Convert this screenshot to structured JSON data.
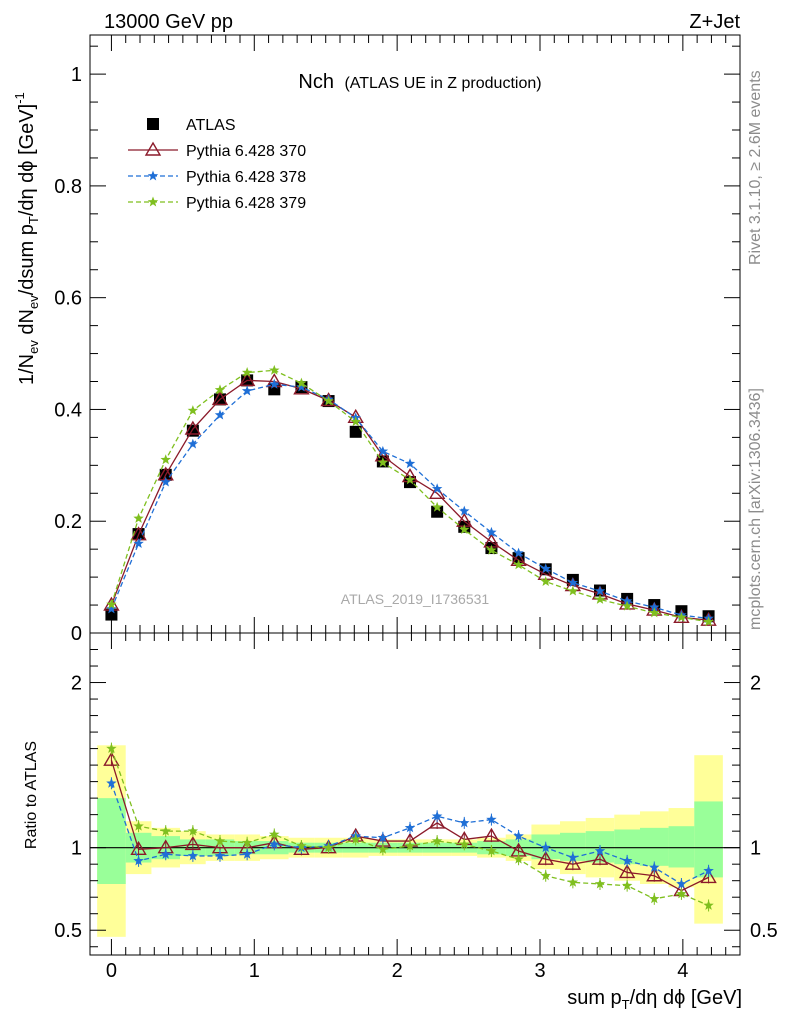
{
  "header": {
    "left": "13000 GeV pp",
    "right": "Z+Jet"
  },
  "title": {
    "main": "Nch",
    "sub": "(ATLAS UE in Z production)"
  },
  "watermark": "ATLAS_2019_I1736531",
  "side_labels": {
    "rivet": "Rivet 3.1.10, ≥ 2.6M events",
    "mcplots": "mcplots.cern.ch [arXiv:1306.3436]"
  },
  "legend": [
    {
      "label": "ATLAS",
      "marker": "square",
      "color": "#000000"
    },
    {
      "label": "Pythia 6.428 370",
      "marker": "triangle",
      "color": "#8b1a2a"
    },
    {
      "label": "Pythia 6.428 378",
      "marker": "star",
      "color": "#1f6fd6"
    },
    {
      "label": "Pythia 6.428 379",
      "marker": "star",
      "color": "#7fbf1f"
    }
  ],
  "colors": {
    "band_yellow": "#ffff99",
    "band_green": "#99ff99"
  },
  "chart_data": [
    {
      "type": "scatter",
      "panel": "main",
      "ylabel": "1/N_ev dN_ev/dsum p_T/dη dϕ [GeV]^-1",
      "xlim": [
        -0.15,
        4.4
      ],
      "ylim": [
        0,
        1.07
      ],
      "yticks": [
        0,
        0.2,
        0.4,
        0.6,
        0.8,
        1
      ],
      "ytick_labels": [
        "0",
        "0.2",
        "0.4",
        "0.6",
        "0.8",
        "1"
      ],
      "x": [
        0,
        0.19,
        0.38,
        0.57,
        0.76,
        0.95,
        1.14,
        1.33,
        1.52,
        1.71,
        1.9,
        2.09,
        2.28,
        2.47,
        2.66,
        2.85,
        3.04,
        3.23,
        3.42,
        3.61,
        3.8,
        3.99,
        4.18
      ],
      "series": [
        {
          "name": "ATLAS",
          "values": [
            0.033,
            0.177,
            0.283,
            0.362,
            0.418,
            0.452,
            0.436,
            0.44,
            0.415,
            0.36,
            0.307,
            0.27,
            0.217,
            0.19,
            0.152,
            0.134,
            0.114,
            0.095,
            0.076,
            0.061,
            0.05,
            0.039,
            0.03
          ]
        },
        {
          "name": "Pythia 6.428 370",
          "values": [
            0.05,
            0.176,
            0.283,
            0.365,
            0.418,
            0.452,
            0.45,
            0.437,
            0.416,
            0.386,
            0.317,
            0.28,
            0.25,
            0.2,
            0.163,
            0.13,
            0.105,
            0.085,
            0.07,
            0.052,
            0.041,
            0.028,
            0.023
          ]
        },
        {
          "name": "Pythia 6.428 378",
          "values": [
            0.043,
            0.16,
            0.27,
            0.338,
            0.39,
            0.433,
            0.445,
            0.44,
            0.418,
            0.385,
            0.325,
            0.303,
            0.258,
            0.218,
            0.18,
            0.143,
            0.115,
            0.09,
            0.075,
            0.057,
            0.046,
            0.032,
            0.026
          ]
        },
        {
          "name": "Pythia 6.428 379",
          "values": [
            0.051,
            0.205,
            0.31,
            0.398,
            0.435,
            0.466,
            0.47,
            0.447,
            0.415,
            0.378,
            0.305,
            0.274,
            0.225,
            0.185,
            0.148,
            0.122,
            0.092,
            0.075,
            0.06,
            0.048,
            0.036,
            0.028,
            0.02
          ]
        }
      ]
    },
    {
      "type": "scatter",
      "panel": "ratio",
      "xlabel": "sum p_T/dη dϕ [GeV]",
      "ylabel": "Ratio to ATLAS",
      "xlim": [
        -0.15,
        4.4
      ],
      "ylim": [
        0.35,
        2.3
      ],
      "xticks": [
        0,
        1,
        2,
        3,
        4
      ],
      "xtick_labels": [
        "0",
        "1",
        "2",
        "3",
        "4"
      ],
      "yticks": [
        0.5,
        1,
        2
      ],
      "ytick_labels": [
        "0.5",
        "1",
        "2"
      ],
      "bin_edges": [
        -0.1,
        0.1,
        0.28,
        0.48,
        0.66,
        0.86,
        1.04,
        1.24,
        1.42,
        1.62,
        1.8,
        2.0,
        2.18,
        2.38,
        2.56,
        2.76,
        2.94,
        3.14,
        3.32,
        3.52,
        3.7,
        3.9,
        4.08,
        4.28
      ],
      "band_yellow": [
        [
          0.46,
          1.62
        ],
        [
          0.84,
          1.16
        ],
        [
          0.88,
          1.12
        ],
        [
          0.9,
          1.1
        ],
        [
          0.92,
          1.08
        ],
        [
          0.92,
          1.08
        ],
        [
          0.93,
          1.07
        ],
        [
          0.94,
          1.06
        ],
        [
          0.94,
          1.06
        ],
        [
          0.94,
          1.06
        ],
        [
          0.95,
          1.05
        ],
        [
          0.95,
          1.05
        ],
        [
          0.95,
          1.05
        ],
        [
          0.95,
          1.05
        ],
        [
          0.94,
          1.06
        ],
        [
          0.92,
          1.08
        ],
        [
          0.87,
          1.14
        ],
        [
          0.84,
          1.16
        ],
        [
          0.82,
          1.18
        ],
        [
          0.8,
          1.2
        ],
        [
          0.78,
          1.22
        ],
        [
          0.76,
          1.24
        ],
        [
          0.54,
          1.56
        ]
      ],
      "band_green": [
        [
          0.78,
          1.3
        ],
        [
          0.91,
          1.09
        ],
        [
          0.93,
          1.07
        ],
        [
          0.95,
          1.05
        ],
        [
          0.95,
          1.05
        ],
        [
          0.96,
          1.04
        ],
        [
          0.96,
          1.04
        ],
        [
          0.97,
          1.03
        ],
        [
          0.97,
          1.03
        ],
        [
          0.97,
          1.03
        ],
        [
          0.97,
          1.03
        ],
        [
          0.97,
          1.03
        ],
        [
          0.97,
          1.03
        ],
        [
          0.97,
          1.03
        ],
        [
          0.96,
          1.04
        ],
        [
          0.95,
          1.05
        ],
        [
          0.93,
          1.08
        ],
        [
          0.92,
          1.09
        ],
        [
          0.91,
          1.1
        ],
        [
          0.9,
          1.11
        ],
        [
          0.89,
          1.12
        ],
        [
          0.88,
          1.13
        ],
        [
          0.82,
          1.28
        ]
      ],
      "x": [
        0,
        0.19,
        0.38,
        0.57,
        0.76,
        0.95,
        1.14,
        1.33,
        1.52,
        1.71,
        1.9,
        2.09,
        2.28,
        2.47,
        2.66,
        2.85,
        3.04,
        3.23,
        3.42,
        3.61,
        3.8,
        3.99,
        4.18
      ],
      "series": [
        {
          "name": "Pythia 6.428 370",
          "values": [
            1.53,
            0.99,
            1.0,
            1.02,
            1.0,
            1.0,
            1.03,
            0.99,
            1.0,
            1.07,
            1.04,
            1.04,
            1.15,
            1.05,
            1.07,
            0.98,
            0.93,
            0.9,
            0.93,
            0.85,
            0.83,
            0.74,
            0.82
          ]
        },
        {
          "name": "Pythia 6.428 378",
          "values": [
            1.39,
            0.92,
            0.96,
            0.95,
            0.95,
            0.96,
            1.02,
            1.0,
            1.01,
            1.07,
            1.06,
            1.12,
            1.19,
            1.15,
            1.17,
            1.07,
            1.0,
            0.94,
            0.98,
            0.92,
            0.88,
            0.78,
            0.86
          ]
        },
        {
          "name": "Pythia 6.428 379",
          "values": [
            1.6,
            1.13,
            1.1,
            1.1,
            1.04,
            1.03,
            1.08,
            1.01,
            1.0,
            1.05,
            0.99,
            1.01,
            1.04,
            1.02,
            0.98,
            0.93,
            0.83,
            0.79,
            0.78,
            0.77,
            0.69,
            0.72,
            0.65
          ]
        }
      ]
    }
  ]
}
